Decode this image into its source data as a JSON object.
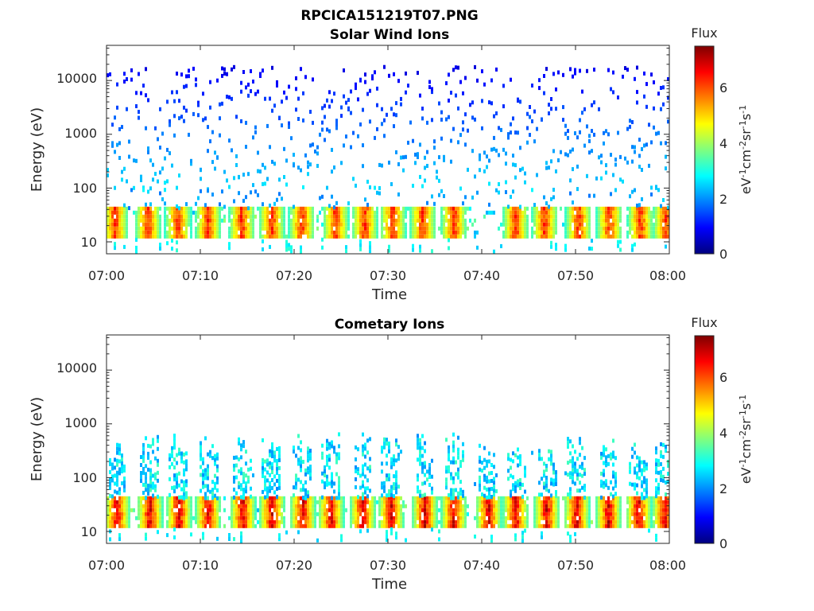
{
  "figure": {
    "title": "RPCICA151219T07.PNG"
  },
  "chart_data": [
    {
      "type": "heatmap",
      "title": "Solar Wind Ions",
      "xlabel": "Time",
      "ylabel": "Energy (eV)",
      "x_ticks": [
        "07:00",
        "07:10",
        "07:20",
        "07:30",
        "07:40",
        "07:50",
        "08:00"
      ],
      "x_range": [
        "07:00",
        "08:00"
      ],
      "y_scale": "log",
      "y_ticks": [
        "10",
        "100",
        "1000",
        "10000"
      ],
      "y_range": [
        6,
        45000
      ],
      "colorbar": {
        "title": "Flux",
        "label": "eV-1cm-2sr-1s-1",
        "ticks": [
          "0",
          "2",
          "4",
          "6"
        ],
        "range": [
          0,
          7.5
        ],
        "colormap": "jet"
      },
      "grid": false,
      "features": {
        "band_energy_ev": [
          12,
          45
        ],
        "band_peak_flux": 6.8,
        "band_pulses_min": [
          0.8,
          4.3,
          7.5,
          10.7,
          14.3,
          17.5,
          20.7,
          24.3,
          27.4,
          30.4,
          33.6,
          36.9,
          43.5,
          46.6,
          50.2,
          53.5,
          56.8,
          59.5
        ],
        "sparse_counts_energy_ev": [
          100,
          20000
        ],
        "sparse_counts_flux": 0.5
      }
    },
    {
      "type": "heatmap",
      "title": "Cometary Ions",
      "xlabel": "Time",
      "ylabel": "Energy (eV)",
      "x_ticks": [
        "07:00",
        "07:10",
        "07:20",
        "07:30",
        "07:40",
        "07:50",
        "08:00"
      ],
      "x_range": [
        "07:00",
        "08:00"
      ],
      "y_scale": "log",
      "y_ticks": [
        "10",
        "100",
        "1000",
        "10000"
      ],
      "y_range": [
        6,
        45000
      ],
      "colorbar": {
        "title": "Flux",
        "label": "eV-1cm-2sr-1s-1",
        "ticks": [
          "0",
          "2",
          "4",
          "6"
        ],
        "range": [
          0,
          7.5
        ],
        "colormap": "jet"
      },
      "grid": false,
      "features": {
        "band_energy_ev": [
          12,
          45
        ],
        "band_peak_flux": 7.4,
        "band_pulses_min": [
          1.0,
          4.5,
          7.6,
          10.7,
          14.4,
          17.5,
          20.8,
          23.8,
          27.2,
          30.2,
          33.8,
          36.9,
          40.6,
          43.5,
          46.8,
          50.0,
          53.4,
          56.6,
          59.4
        ],
        "tail_energy_ev": [
          45,
          700
        ],
        "tail_flux": 2.8
      }
    }
  ]
}
